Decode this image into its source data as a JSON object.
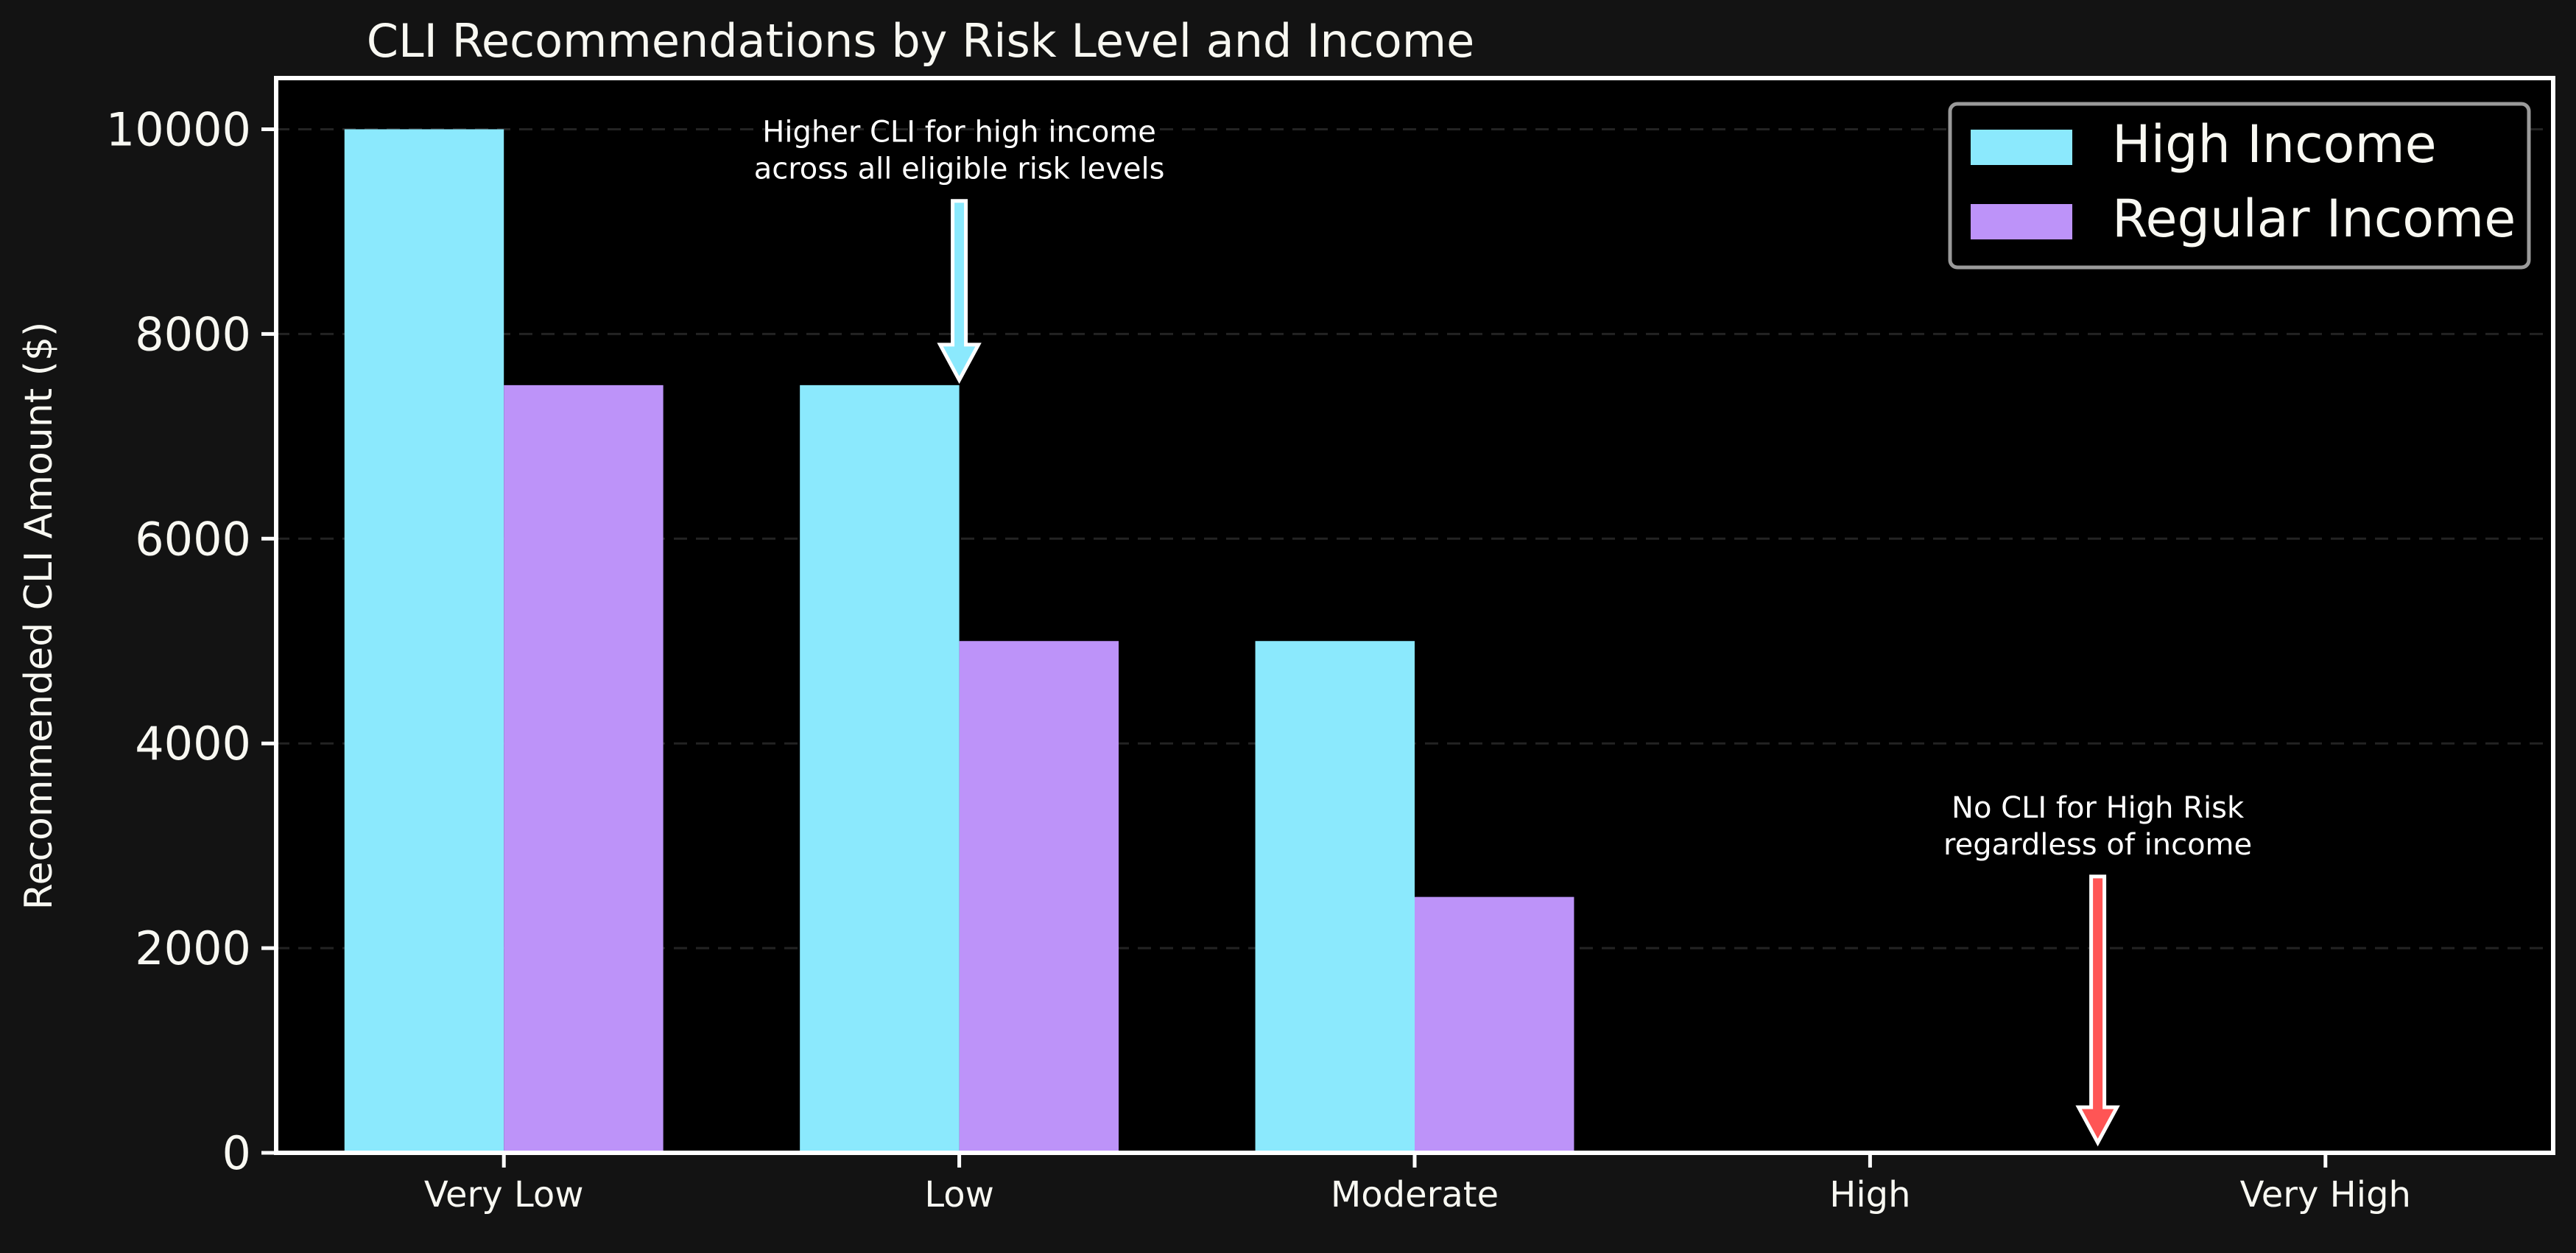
{
  "chart_data": {
    "type": "bar",
    "title": "CLI Recommendations by Risk Level and Income",
    "xlabel": "",
    "ylabel": "Recommended CLI Amount ($)",
    "categories": [
      "Very Low",
      "Low",
      "Moderate",
      "High",
      "Very High"
    ],
    "series": [
      {
        "name": "High Income",
        "values": [
          10000,
          7500,
          5000,
          0,
          0
        ],
        "color": "#8be9fd"
      },
      {
        "name": "Regular Income",
        "values": [
          7500,
          5000,
          2500,
          0,
          0
        ],
        "color": "#bd93f9"
      }
    ],
    "ylim": [
      0,
      10500
    ],
    "yticks": [
      0,
      2000,
      4000,
      6000,
      8000,
      10000
    ],
    "grid": true,
    "legend": "top-right",
    "annotations": [
      {
        "lines": [
          "Higher CLI for high income",
          "across all eligible risk levels"
        ],
        "category": "Low",
        "arrow_from": 9300,
        "arrow_to": 7550,
        "arrow_color": "#8be9fd"
      },
      {
        "lines": [
          "No CLI for High Risk",
          "regardless of income"
        ],
        "category": "High",
        "offset": 0.5,
        "arrow_from": 2700,
        "arrow_to": 100,
        "arrow_color": "#ff5555"
      }
    ],
    "colors": {
      "figure_bg": "#131313",
      "plot_bg": "#000000",
      "text": "#f8f8f2",
      "grid": "#3a3a3a"
    }
  }
}
